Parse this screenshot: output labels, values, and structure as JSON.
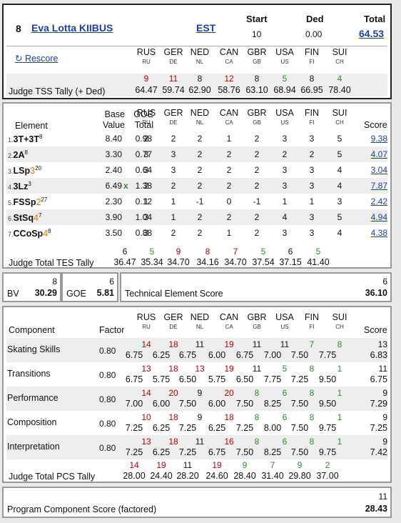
{
  "header": {
    "rank": "8",
    "name": "Eva Lotta KIIBUS",
    "nation": "EST",
    "start_label": "Start",
    "start_value": "10",
    "ded_label": "Ded",
    "ded_value": "0.00",
    "total_label": "Total",
    "total_value": "64.53",
    "rescore_label": "↻ Rescore",
    "judges": [
      {
        "name": "RUS",
        "code": "RU"
      },
      {
        "name": "GER",
        "code": "DE"
      },
      {
        "name": "NED",
        "code": "NL"
      },
      {
        "name": "CAN",
        "code": "CA"
      },
      {
        "name": "GBR",
        "code": "GB"
      },
      {
        "name": "USA",
        "code": "US"
      },
      {
        "name": "FIN",
        "code": "FI"
      },
      {
        "name": "SUI",
        "code": "CH"
      }
    ],
    "tally_label": "Judge TSS Tally (+ Ded)",
    "tss_ranks": [
      "9",
      "11",
      "8",
      "12",
      "8",
      "5",
      "8",
      "4"
    ],
    "tss_values": [
      "64.47",
      "59.74",
      "62.90",
      "58.76",
      "63.10",
      "68.94",
      "66.95",
      "78.40"
    ]
  },
  "elements": {
    "col_element": "Element",
    "col_base1": "Base",
    "col_base2": "Value",
    "col_goe1": "GOE",
    "col_goe2": "Total",
    "col_score": "Score",
    "rows": [
      {
        "num": "1.",
        "name": "3T+3T",
        "sup": "8",
        "extra": "",
        "base": "8.40",
        "x": "",
        "goe": "0.98",
        "marks": [
          "2",
          "2",
          "2",
          "1",
          "2",
          "3",
          "3",
          "5"
        ],
        "score": "9.38"
      },
      {
        "num": "2.",
        "name": "2A",
        "sup": "8",
        "extra": "",
        "base": "3.30",
        "x": "",
        "goe": "0.77",
        "marks": [
          "3",
          "3",
          "2",
          "2",
          "2",
          "2",
          "2",
          "5"
        ],
        "score": "4.07"
      },
      {
        "num": "3.",
        "name": "LSp",
        "sup": "20",
        "extra": "3",
        "base": "2.40",
        "x": "",
        "goe": "0.64",
        "marks": [
          "3",
          "3",
          "2",
          "2",
          "2",
          "3",
          "3",
          "4"
        ],
        "score": "3.04"
      },
      {
        "num": "4.",
        "name": "3Lz",
        "sup": "3",
        "extra": "",
        "base": "6.49",
        "x": "x",
        "goe": "1.38",
        "marks": [
          "2",
          "2",
          "2",
          "2",
          "2",
          "3",
          "3",
          "4"
        ],
        "score": "7.87"
      },
      {
        "num": "5.",
        "name": "FSSp",
        "sup": "27",
        "extra": "2",
        "base": "2.30",
        "x": "",
        "goe": "0.12",
        "marks": [
          "1",
          "1",
          "-1",
          "0",
          "-1",
          "1",
          "1",
          "3"
        ],
        "score": "2.42"
      },
      {
        "num": "6.",
        "name": "StSq",
        "sup": "7",
        "extra": "4",
        "base": "3.90",
        "x": "",
        "goe": "1.04",
        "marks": [
          "3",
          "1",
          "2",
          "2",
          "2",
          "4",
          "3",
          "5"
        ],
        "score": "4.94"
      },
      {
        "num": "7.",
        "name": "CCoSp",
        "sup": "8",
        "extra": "4",
        "base": "3.50",
        "x": "",
        "goe": "0.88",
        "marks": [
          "3",
          "2",
          "2",
          "1",
          "2",
          "3",
          "3",
          "4"
        ],
        "score": "4.38"
      }
    ],
    "tally_label": "Judge Total TES Tally",
    "tes_ranks": [
      "6",
      "5",
      "9",
      "8",
      "7",
      "5",
      "6",
      "5"
    ],
    "tes_values": [
      "36.47",
      "35.34",
      "34.70",
      "34.16",
      "34.70",
      "37.54",
      "37.15",
      "41.40"
    ]
  },
  "summary": {
    "bv_label": "BV",
    "bv_rank": "8",
    "bv_value": "30.29",
    "goe_label": "GOE",
    "goe_rank": "6",
    "goe_value": "5.81",
    "tes_label": "Technical Element Score",
    "tes_rank": "6",
    "tes_value": "36.10"
  },
  "components": {
    "col_component": "Component",
    "col_factor": "Factor",
    "col_score": "Score",
    "rows": [
      {
        "name": "Skating Skills",
        "factor": "0.80",
        "ranks": [
          "14",
          "18",
          "11",
          "19",
          "11",
          "11",
          "7",
          "8"
        ],
        "values": [
          "6.75",
          "6.25",
          "6.75",
          "6.00",
          "6.75",
          "7.00",
          "7.50",
          "7.75"
        ],
        "score_rank": "13",
        "score": "6.83"
      },
      {
        "name": "Transitions",
        "factor": "0.80",
        "ranks": [
          "13",
          "18",
          "13",
          "19",
          "11",
          "5",
          "8",
          "1"
        ],
        "values": [
          "6.75",
          "5.75",
          "6.50",
          "5.75",
          "6.50",
          "7.75",
          "7.25",
          "9.50"
        ],
        "score_rank": "11",
        "score": "6.75"
      },
      {
        "name": "Performance",
        "factor": "0.80",
        "ranks": [
          "14",
          "20",
          "9",
          "20",
          "8",
          "6",
          "8",
          "1"
        ],
        "values": [
          "7.00",
          "6.00",
          "7.50",
          "6.00",
          "7.50",
          "8.25",
          "7.50",
          "9.50"
        ],
        "score_rank": "9",
        "score": "7.29"
      },
      {
        "name": "Composition",
        "factor": "0.80",
        "ranks": [
          "10",
          "18",
          "9",
          "18",
          "8",
          "6",
          "8",
          "1"
        ],
        "values": [
          "7.25",
          "6.25",
          "7.25",
          "6.25",
          "7.25",
          "8.00",
          "7.50",
          "9.75"
        ],
        "score_rank": "9",
        "score": "7.25"
      },
      {
        "name": "Interpretation",
        "factor": "0.80",
        "ranks": [
          "13",
          "18",
          "11",
          "16",
          "8",
          "6",
          "8",
          "1"
        ],
        "values": [
          "7.25",
          "6.25",
          "7.25",
          "6.75",
          "7.50",
          "8.25",
          "7.50",
          "9.75"
        ],
        "score_rank": "9",
        "score": "7.42"
      }
    ],
    "tally_label": "Judge Total PCS Tally",
    "pcs_ranks": [
      "14",
      "19",
      "11",
      "19",
      "9",
      "7",
      "9",
      "2"
    ],
    "pcs_values": [
      "28.00",
      "24.40",
      "28.20",
      "24.60",
      "28.40",
      "31.40",
      "29.80",
      "37.00"
    ]
  },
  "pcs_total": {
    "label": "Program Component Score (factored)",
    "rank": "11",
    "value": "28.43"
  },
  "colors": {
    "red": "#c00000",
    "green": "#2e8b2e",
    "orange": "#e07b00",
    "link": "#1a3fb0"
  }
}
